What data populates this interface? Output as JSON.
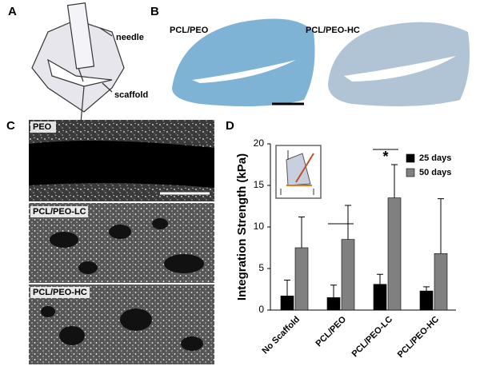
{
  "panel_labels": [
    "A",
    "B",
    "C",
    "D"
  ],
  "panel_a": {
    "needle": "needle",
    "scaffold": "scaffold"
  },
  "panel_b": {
    "labels": [
      "PCL/PEO",
      "PCL/PEO-HC"
    ]
  },
  "panel_c": {
    "labels": [
      "PEO",
      "PCL/PEO-LC",
      "PCL/PEO-HC"
    ]
  },
  "chart_data": {
    "type": "bar",
    "y_label": "Integration Strength (kPa)",
    "categories": [
      "No Scaffold",
      "PCL/PEO",
      "PCL/PEO-LC",
      "PCL/PEO-HC"
    ],
    "series": [
      {
        "name": "25 days",
        "color": "#000000",
        "values": [
          1.7,
          1.5,
          3.1,
          2.3
        ],
        "errors": [
          1.9,
          1.5,
          1.2,
          0.5
        ]
      },
      {
        "name": "50 days",
        "color": "#808080",
        "values": [
          7.5,
          8.5,
          13.5,
          6.8
        ],
        "errors": [
          3.7,
          4.1,
          4.0,
          6.6
        ]
      }
    ],
    "annotations": [
      "*"
    ],
    "ylim": [
      0,
      20
    ],
    "yticks": [
      0,
      5,
      10,
      15,
      20
    ],
    "legend": "upper right"
  }
}
